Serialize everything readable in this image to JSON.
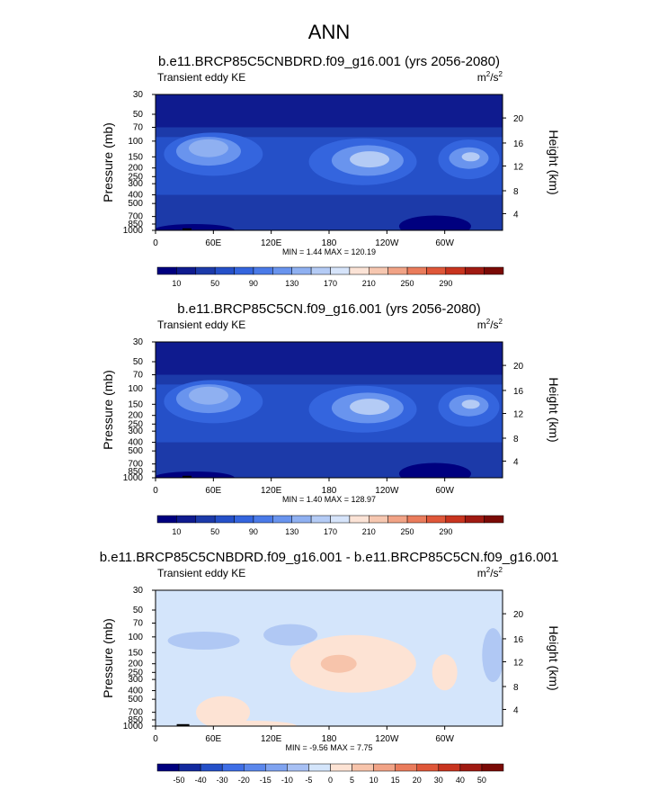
{
  "page_title": "ANN",
  "colors": {
    "blue_ramp": [
      "#00007f",
      "#0f1b8f",
      "#1c3aa9",
      "#2550c8",
      "#3465de",
      "#4a7ae8",
      "#6994ee",
      "#8fb0f1",
      "#b4cbf5",
      "#d6e4fa"
    ],
    "warm_ramp": [
      "#fbe3d6",
      "#f6c7b0",
      "#f1a386",
      "#ea7c5c",
      "#df5739",
      "#c8341f",
      "#a01a12",
      "#7a0a06"
    ],
    "diff_base": "#d4e5fb",
    "diff_neg1": "#b0c8f4",
    "diff_neg2": "#8aa8ec",
    "diff_pos1": "#fde3d4",
    "diff_pos2": "#f7c4ab"
  },
  "chart_data": [
    {
      "type": "contour",
      "title": "b.e11.BRCP85C5CNBDRD.f09_g16.001 (yrs 2056-2080)",
      "left_label": "Transient eddy KE",
      "units_base": "m",
      "units_sup1": "2",
      "units_mid": "/s",
      "units_sup2": "2",
      "ylabel": "Pressure (mb)",
      "ylabel_right": "Height (km)",
      "pressure_ticks": [
        "30",
        "50",
        "70",
        "100",
        "150",
        "200",
        "250",
        "300",
        "400",
        "500",
        "700",
        "850",
        "1000"
      ],
      "height_ticks": [
        "20",
        "16",
        "12",
        "8",
        "4"
      ],
      "x_ticks": [
        "0",
        "60E",
        "120E",
        "180",
        "120W",
        "60W"
      ],
      "stats": "MIN =   1.44   MAX = 120.19",
      "colorbar_labels": [
        "10",
        "50",
        "90",
        "130",
        "170",
        "210",
        "250",
        "290"
      ]
    },
    {
      "type": "contour",
      "title": "b.e11.BRCP85C5CN.f09_g16.001 (yrs 2056-2080)",
      "left_label": "Transient eddy KE",
      "units_base": "m",
      "units_sup1": "2",
      "units_mid": "/s",
      "units_sup2": "2",
      "ylabel": "Pressure (mb)",
      "ylabel_right": "Height (km)",
      "pressure_ticks": [
        "30",
        "50",
        "70",
        "100",
        "150",
        "200",
        "250",
        "300",
        "400",
        "500",
        "700",
        "850",
        "1000"
      ],
      "height_ticks": [
        "20",
        "16",
        "12",
        "8",
        "4"
      ],
      "x_ticks": [
        "0",
        "60E",
        "120E",
        "180",
        "120W",
        "60W"
      ],
      "stats": "MIN =   1.40   MAX = 128.97",
      "colorbar_labels": [
        "10",
        "50",
        "90",
        "130",
        "170",
        "210",
        "250",
        "290"
      ]
    },
    {
      "type": "contour",
      "title": "b.e11.BRCP85C5CNBDRD.f09_g16.001 - b.e11.BRCP85C5CN.f09_g16.001",
      "left_label": "Transient eddy KE",
      "units_base": "m",
      "units_sup1": "2",
      "units_mid": "/s",
      "units_sup2": "2",
      "ylabel": "Pressure (mb)",
      "ylabel_right": "Height (km)",
      "pressure_ticks": [
        "30",
        "50",
        "70",
        "100",
        "150",
        "200",
        "250",
        "300",
        "400",
        "500",
        "700",
        "850",
        "1000"
      ],
      "height_ticks": [
        "20",
        "16",
        "12",
        "8",
        "4"
      ],
      "x_ticks": [
        "0",
        "60E",
        "120E",
        "180",
        "120W",
        "60W"
      ],
      "stats": "MIN =  -9.56   MAX =   7.75",
      "colorbar_labels": [
        "-50",
        "-40",
        "-30",
        "-20",
        "-15",
        "-10",
        "-5",
        "0",
        "5",
        "10",
        "15",
        "20",
        "30",
        "40",
        "50"
      ]
    }
  ]
}
